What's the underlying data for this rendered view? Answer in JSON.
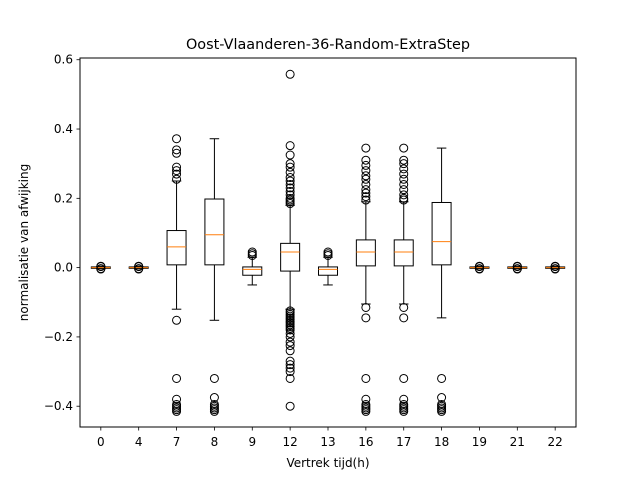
{
  "chart_data": {
    "type": "box",
    "title": "Oost-Vlaanderen-36-Random-ExtraStep",
    "xlabel": "Vertrek tijd(h)",
    "ylabel": "normalisatie van afwijking",
    "ylim": [
      -0.46,
      0.605
    ],
    "yticks": [
      -0.4,
      -0.2,
      0.0,
      0.2,
      0.4,
      0.6
    ],
    "ytick_labels": [
      "−0.4",
      "−0.2",
      "0.0",
      "0.2",
      "0.4",
      "0.6"
    ],
    "categories": [
      "0",
      "4",
      "7",
      "8",
      "9",
      "12",
      "13",
      "16",
      "17",
      "18",
      "19",
      "21",
      "22"
    ],
    "colors": {
      "box": "#000000",
      "median": "#ff7f0e",
      "flier": "#000000"
    },
    "boxes": [
      {
        "category": "0",
        "whisker_low": -0.003,
        "q1": -0.002,
        "median": 0.0,
        "q3": 0.002,
        "whisker_high": 0.003,
        "fliers": [
          -0.004,
          -0.003,
          0.003,
          0.004
        ]
      },
      {
        "category": "4",
        "whisker_low": -0.003,
        "q1": -0.002,
        "median": 0.0,
        "q3": 0.002,
        "whisker_high": 0.003,
        "fliers": [
          -0.004,
          -0.003,
          0.003,
          0.004
        ]
      },
      {
        "category": "7",
        "whisker_low": -0.12,
        "q1": 0.008,
        "median": 0.06,
        "q3": 0.107,
        "whisker_high": 0.25,
        "fliers": [
          -0.152,
          -0.32,
          -0.38,
          -0.395,
          -0.4,
          -0.405,
          -0.41,
          -0.415,
          0.255,
          0.27,
          0.28,
          0.29,
          0.33,
          0.34,
          0.372
        ]
      },
      {
        "category": "8",
        "whisker_low": -0.152,
        "q1": 0.008,
        "median": 0.095,
        "q3": 0.198,
        "whisker_high": 0.372,
        "fliers": [
          -0.32,
          -0.375,
          -0.395,
          -0.4,
          -0.405,
          -0.41,
          -0.415
        ]
      },
      {
        "category": "9",
        "whisker_low": -0.05,
        "q1": -0.022,
        "median": -0.005,
        "q3": 0.002,
        "whisker_high": 0.03,
        "fliers": [
          0.035,
          0.04,
          0.045
        ]
      },
      {
        "category": "12",
        "whisker_low": -0.12,
        "q1": -0.01,
        "median": 0.045,
        "q3": 0.07,
        "whisker_high": 0.18,
        "fliers": [
          -0.125,
          -0.13,
          -0.135,
          -0.14,
          -0.145,
          -0.15,
          -0.155,
          -0.16,
          -0.165,
          -0.17,
          -0.175,
          -0.18,
          -0.19,
          -0.2,
          -0.215,
          -0.225,
          -0.24,
          -0.27,
          -0.28,
          -0.29,
          -0.3,
          -0.32,
          -0.4,
          0.185,
          0.19,
          0.195,
          0.2,
          0.21,
          0.22,
          0.23,
          0.24,
          0.25,
          0.26,
          0.275,
          0.29,
          0.3,
          0.325,
          0.352,
          0.558
        ]
      },
      {
        "category": "13",
        "whisker_low": -0.05,
        "q1": -0.022,
        "median": -0.005,
        "q3": 0.002,
        "whisker_high": 0.03,
        "fliers": [
          0.035,
          0.04,
          0.045
        ]
      },
      {
        "category": "16",
        "whisker_low": -0.105,
        "q1": 0.005,
        "median": 0.045,
        "q3": 0.08,
        "whisker_high": 0.19,
        "fliers": [
          -0.115,
          -0.145,
          -0.32,
          -0.38,
          -0.395,
          -0.4,
          -0.405,
          -0.41,
          -0.415,
          0.195,
          0.205,
          0.215,
          0.225,
          0.24,
          0.255,
          0.265,
          0.28,
          0.295,
          0.31,
          0.345
        ]
      },
      {
        "category": "17",
        "whisker_low": -0.105,
        "q1": 0.005,
        "median": 0.045,
        "q3": 0.08,
        "whisker_high": 0.19,
        "fliers": [
          -0.115,
          -0.145,
          -0.32,
          -0.38,
          -0.395,
          -0.4,
          -0.405,
          -0.41,
          -0.415,
          0.195,
          0.2,
          0.21,
          0.225,
          0.24,
          0.255,
          0.27,
          0.285,
          0.3,
          0.31,
          0.345
        ]
      },
      {
        "category": "18",
        "whisker_low": -0.145,
        "q1": 0.008,
        "median": 0.075,
        "q3": 0.188,
        "whisker_high": 0.345,
        "fliers": [
          -0.32,
          -0.375,
          -0.395,
          -0.4,
          -0.405,
          -0.41,
          -0.415
        ]
      },
      {
        "category": "19",
        "whisker_low": -0.003,
        "q1": -0.002,
        "median": 0.0,
        "q3": 0.002,
        "whisker_high": 0.003,
        "fliers": [
          -0.004,
          -0.003,
          0.003,
          0.004
        ]
      },
      {
        "category": "21",
        "whisker_low": -0.003,
        "q1": -0.002,
        "median": 0.0,
        "q3": 0.002,
        "whisker_high": 0.003,
        "fliers": [
          -0.004,
          -0.003,
          0.003,
          0.004
        ]
      },
      {
        "category": "22",
        "whisker_low": -0.003,
        "q1": -0.002,
        "median": 0.0,
        "q3": 0.002,
        "whisker_high": 0.003,
        "fliers": [
          -0.004,
          -0.003,
          0.003,
          0.004
        ]
      }
    ]
  }
}
